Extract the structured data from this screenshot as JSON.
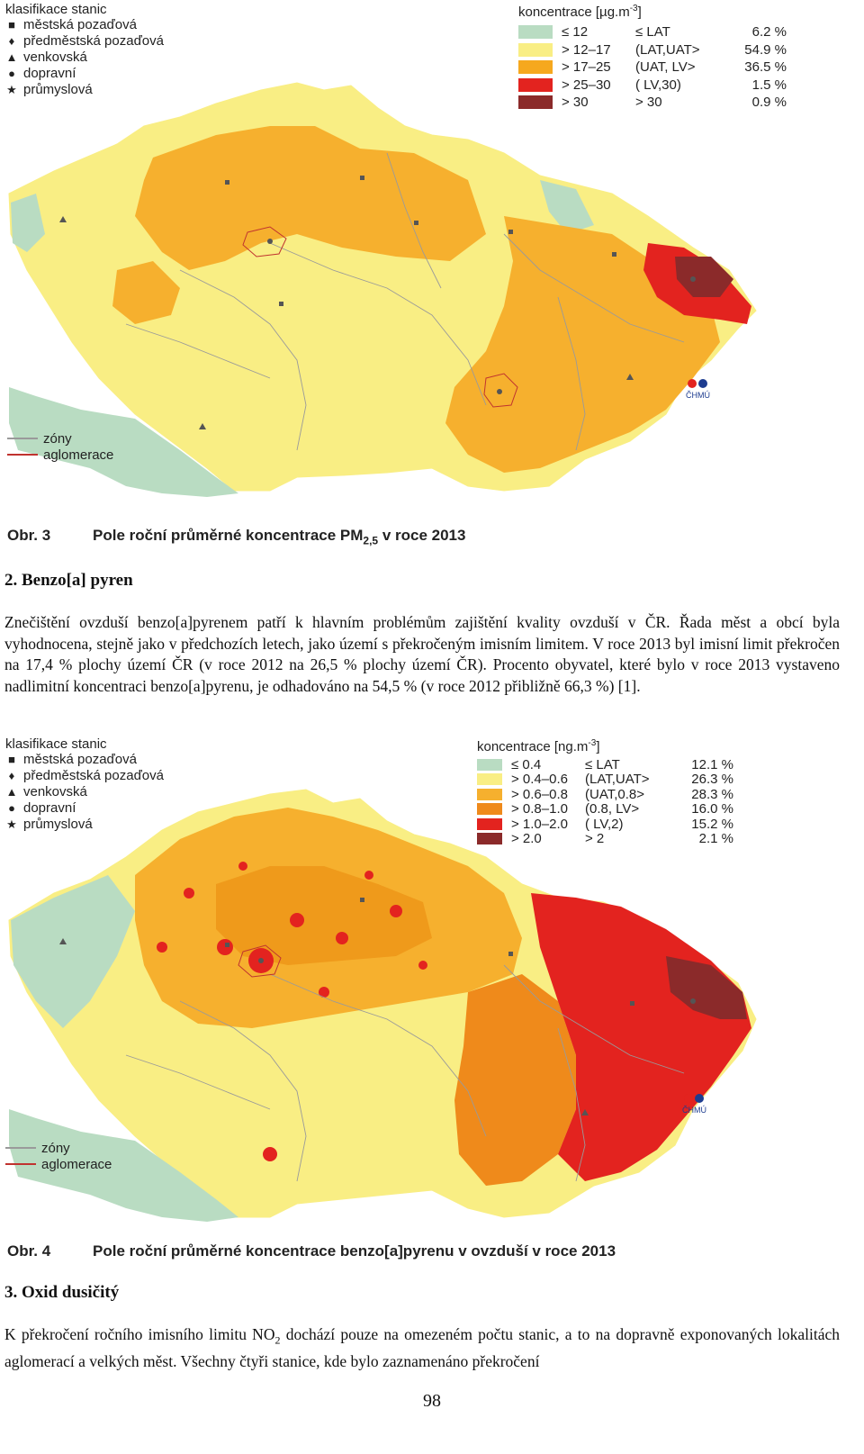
{
  "colors": {
    "green": "#b9dcc2",
    "yellow": "#f9ee84",
    "orange_light": "#f6b02e",
    "orange": "#ef9a1b",
    "red": "#e3231f",
    "darkred": "#8b2a2a",
    "zone_line": "#9a9a9a",
    "aglomerace_line": "#c0332f",
    "chmu_blue": "#1d3c8f"
  },
  "map1": {
    "station_title": "klasifikace stanic",
    "stations": [
      {
        "icon": "square-icon",
        "label": "městská pozaďová"
      },
      {
        "icon": "diamond-icon",
        "label": "předměstská pozaďová"
      },
      {
        "icon": "triangle-icon",
        "label": "venkovská"
      },
      {
        "icon": "circle-icon",
        "label": "dopravní"
      },
      {
        "icon": "star-icon",
        "label": "průmyslová"
      }
    ],
    "conc_title": "koncentrace [µg.m",
    "conc_title_sup": "-3",
    "conc_title_end": "]",
    "conc_rows": [
      {
        "range": "≤ 12",
        "cls": "≤ LAT",
        "pct": "6.2 %"
      },
      {
        "range": "> 12–17",
        "cls": "(LAT,UAT>",
        "pct": "54.9 %"
      },
      {
        "range": "> 17–25",
        "cls": "(UAT, LV>",
        "pct": "36.5 %"
      },
      {
        "range": "> 25–30",
        "cls": "( LV,30)",
        "pct": "1.5 %"
      },
      {
        "range": "> 30",
        "cls": "> 30",
        "pct": "0.9 %"
      }
    ],
    "zones_label": "zóny",
    "aglomerace_label": "aglomerace",
    "logo_text": "ČHMÚ"
  },
  "caption3": {
    "label": "Obr. 3",
    "text": "Pole roční průměrné koncentrace PM",
    "sub": "2,5",
    "text_end": " v roce 2013"
  },
  "section2": {
    "heading": "2. Benzo[a] pyren",
    "paragraph": "Znečištění ovzduší benzo[a]pyrenem patří k hlavním problémům zajištění kvality ovzduší v ČR. Řada měst a obcí byla vyhodnocena, stejně jako v předchozích letech, jako území s překročeným imisním limitem. V roce 2013 byl imisní limit překročen na 17,4 % plochy území ČR (v roce 2012 na 26,5 % plochy území ČR). Procento obyvatel, které bylo v roce 2013 vystaveno nadlimitní koncentraci benzo[a]pyrenu, je odhadováno na 54,5 % (v roce 2012 přibližně 66,3 %) [1]."
  },
  "map2": {
    "station_title": "klasifikace stanic",
    "stations": [
      {
        "icon": "square-icon",
        "label": "městská pozaďová"
      },
      {
        "icon": "diamond-icon",
        "label": "předměstská pozaďová"
      },
      {
        "icon": "triangle-icon",
        "label": "venkovská"
      },
      {
        "icon": "circle-icon",
        "label": "dopravní"
      },
      {
        "icon": "star-icon",
        "label": "průmyslová"
      }
    ],
    "conc_title": "koncentrace [ng.m",
    "conc_title_sup": "-3",
    "conc_title_end": "]",
    "conc_rows": [
      {
        "range": "≤ 0.4",
        "cls": "≤ LAT",
        "pct": "12.1 %"
      },
      {
        "range": "> 0.4–0.6",
        "cls": "(LAT,UAT>",
        "pct": "26.3 %"
      },
      {
        "range": "> 0.6–0.8",
        "cls": "(UAT,0.8>",
        "pct": "28.3 %"
      },
      {
        "range": "> 0.8–1.0",
        "cls": "(0.8, LV>",
        "pct": "16.0 %"
      },
      {
        "range": "> 1.0–2.0",
        "cls": "( LV,2)",
        "pct": "15.2 %"
      },
      {
        "range": "> 2.0",
        "cls": "> 2",
        "pct": "2.1 %"
      }
    ],
    "zones_label": "zóny",
    "aglomerace_label": "aglomerace",
    "logo_text": "ČHMÚ"
  },
  "caption4": {
    "label": "Obr. 4",
    "text": "Pole roční průměrné koncentrace benzo[a]pyrenu v ovzduší v roce 2013"
  },
  "section3": {
    "heading": "3. Oxid dusičitý",
    "paragraph_a": "K překročení ročního imisního limitu NO",
    "paragraph_sub": "2",
    "paragraph_b": " dochází pouze na omezeném počtu stanic, a to na dopravně exponovaných lokalitách aglomerací a velkých měst. Všechny čtyři stanice, kde bylo zaznamenáno překročení"
  },
  "page_number": "98"
}
